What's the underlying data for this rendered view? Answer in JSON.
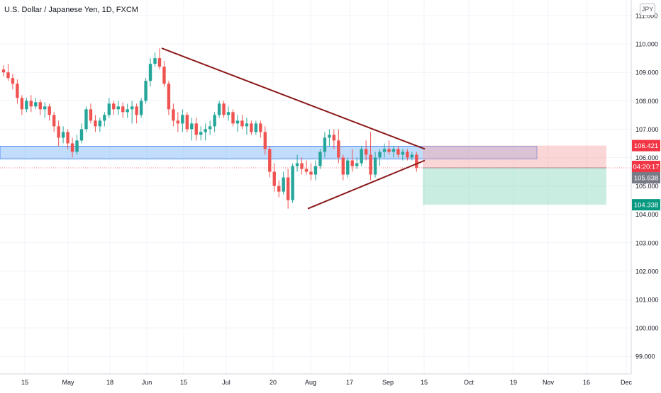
{
  "header": {
    "title": "U.S. Dollar / Japanese Yen, 1D, FXCM",
    "currency": "JPY"
  },
  "chart_data": {
    "type": "candlestick",
    "title": "U.S. Dollar / Japanese Yen, 1D, FXCM",
    "ylim": [
      98.4,
      111.6
    ],
    "y_ticks": [
      "111.000",
      "110.000",
      "109.000",
      "108.000",
      "107.000",
      "106.000",
      "105.000",
      "104.000",
      "103.000",
      "102.000",
      "101.000",
      "100.000",
      "99.000"
    ],
    "x_ticks": [
      "15",
      "May",
      "18",
      "Jun",
      "15",
      "Jul",
      "20",
      "Aug",
      "17",
      "Sep",
      "15",
      "Oct",
      "19",
      "Nov",
      "16",
      "Dec"
    ],
    "price_labels": {
      "stop": "106.421",
      "countdown": "04:20:17",
      "last": "105.638",
      "target": "104.338"
    },
    "colors": {
      "up": "#26a69a",
      "down": "#ef5350",
      "trend": "#8b1a1a",
      "zone": "#90bff9"
    },
    "zone": [
      105.95,
      106.4
    ],
    "position": {
      "entry": 105.638,
      "stop": 106.421,
      "target": 104.338
    },
    "trendlines": [
      {
        "from": [
          0,
          109.85
        ],
        "to": [
          62,
          106.3
        ]
      },
      {
        "from": [
          0,
          104.2
        ],
        "to": [
          62,
          105.9
        ]
      }
    ],
    "candles": [
      [
        109.1,
        109.25,
        108.85,
        109.0
      ],
      [
        109.0,
        109.3,
        108.7,
        108.8
      ],
      [
        108.8,
        108.95,
        108.4,
        108.6
      ],
      [
        108.6,
        108.75,
        107.9,
        108.1
      ],
      [
        108.1,
        108.2,
        107.5,
        107.7
      ],
      [
        107.7,
        108.1,
        107.6,
        108.0
      ],
      [
        108.0,
        108.2,
        107.6,
        107.8
      ],
      [
        107.8,
        108.1,
        107.7,
        107.95
      ],
      [
        107.95,
        108.05,
        107.5,
        107.7
      ],
      [
        107.7,
        107.95,
        107.4,
        107.8
      ],
      [
        107.8,
        107.9,
        107.3,
        107.5
      ],
      [
        107.5,
        107.6,
        106.9,
        107.1
      ],
      [
        107.1,
        107.3,
        106.4,
        106.7
      ],
      [
        106.7,
        107.1,
        106.5,
        106.9
      ],
      [
        106.9,
        107.0,
        106.3,
        106.5
      ],
      [
        106.5,
        106.7,
        106.0,
        106.2
      ],
      [
        106.2,
        106.8,
        106.1,
        106.6
      ],
      [
        106.6,
        107.2,
        106.5,
        107.0
      ],
      [
        107.0,
        107.8,
        106.9,
        107.7
      ],
      [
        107.7,
        107.9,
        107.2,
        107.3
      ],
      [
        107.3,
        107.5,
        106.9,
        107.1
      ],
      [
        107.1,
        107.4,
        106.9,
        107.3
      ],
      [
        107.3,
        107.6,
        107.1,
        107.5
      ],
      [
        107.5,
        108.1,
        107.4,
        107.9
      ],
      [
        107.9,
        108.0,
        107.5,
        107.7
      ],
      [
        107.7,
        108.0,
        107.5,
        107.8
      ],
      [
        107.8,
        107.95,
        107.4,
        107.6
      ],
      [
        107.6,
        107.9,
        107.4,
        107.7
      ],
      [
        107.7,
        108.0,
        107.2,
        107.8
      ],
      [
        107.8,
        107.9,
        107.2,
        107.5
      ],
      [
        107.5,
        108.1,
        107.4,
        108.0
      ],
      [
        108.0,
        108.8,
        107.9,
        108.7
      ],
      [
        108.7,
        109.5,
        108.5,
        109.3
      ],
      [
        109.3,
        109.7,
        109.2,
        109.5
      ],
      [
        109.5,
        109.85,
        109.1,
        109.2
      ],
      [
        109.2,
        109.4,
        108.5,
        108.6
      ],
      [
        108.6,
        108.7,
        107.5,
        107.7
      ],
      [
        107.7,
        107.9,
        107.1,
        107.3
      ],
      [
        107.3,
        107.6,
        106.9,
        107.2
      ],
      [
        107.2,
        107.7,
        106.9,
        107.5
      ],
      [
        107.5,
        107.6,
        106.9,
        107.0
      ],
      [
        107.0,
        107.4,
        106.6,
        107.2
      ],
      [
        107.2,
        107.4,
        106.6,
        106.8
      ],
      [
        106.8,
        107.1,
        106.6,
        106.9
      ],
      [
        106.9,
        107.2,
        106.6,
        107.0
      ],
      [
        107.0,
        107.3,
        106.8,
        107.1
      ],
      [
        107.1,
        107.6,
        106.9,
        107.5
      ],
      [
        107.5,
        108.0,
        107.4,
        107.9
      ],
      [
        107.9,
        108.0,
        107.4,
        107.5
      ],
      [
        107.5,
        107.8,
        107.3,
        107.6
      ],
      [
        107.6,
        107.7,
        107.1,
        107.2
      ],
      [
        107.2,
        107.5,
        106.9,
        107.3
      ],
      [
        107.3,
        107.5,
        107.0,
        107.1
      ],
      [
        107.1,
        107.4,
        106.8,
        107.2
      ],
      [
        107.2,
        107.3,
        106.8,
        106.9
      ],
      [
        106.9,
        107.3,
        106.8,
        107.2
      ],
      [
        107.2,
        107.3,
        106.7,
        106.9
      ],
      [
        106.9,
        107.1,
        106.1,
        106.3
      ],
      [
        106.3,
        106.4,
        105.3,
        105.5
      ],
      [
        105.5,
        105.8,
        104.8,
        105.0
      ],
      [
        105.0,
        105.2,
        104.6,
        104.8
      ],
      [
        104.8,
        105.5,
        104.7,
        105.3
      ],
      [
        105.3,
        105.6,
        104.2,
        104.5
      ],
      [
        104.5,
        105.8,
        104.4,
        105.7
      ],
      [
        105.7,
        106.1,
        105.5,
        105.8
      ],
      [
        105.8,
        106.0,
        105.4,
        105.6
      ],
      [
        105.6,
        105.9,
        105.4,
        105.5
      ],
      [
        105.5,
        105.8,
        105.2,
        105.4
      ],
      [
        105.4,
        105.9,
        105.2,
        105.7
      ],
      [
        105.7,
        106.3,
        105.6,
        106.2
      ],
      [
        106.2,
        106.9,
        106.0,
        106.7
      ],
      [
        106.7,
        107.0,
        106.4,
        106.8
      ],
      [
        106.8,
        107.0,
        106.3,
        106.6
      ],
      [
        106.6,
        107.0,
        105.8,
        106.0
      ],
      [
        106.0,
        106.1,
        105.2,
        105.4
      ],
      [
        105.4,
        106.0,
        105.3,
        105.9
      ],
      [
        105.9,
        106.3,
        105.5,
        105.7
      ],
      [
        105.7,
        106.0,
        105.6,
        105.8
      ],
      [
        105.8,
        106.4,
        105.7,
        106.3
      ],
      [
        106.3,
        106.6,
        105.9,
        106.1
      ],
      [
        106.1,
        106.9,
        105.2,
        105.4
      ],
      [
        105.4,
        106.2,
        105.3,
        106.0
      ],
      [
        106.0,
        106.3,
        105.7,
        106.2
      ],
      [
        106.2,
        106.5,
        106.0,
        106.3
      ],
      [
        106.3,
        106.6,
        106.1,
        106.2
      ],
      [
        106.2,
        106.4,
        106.0,
        106.3
      ],
      [
        106.3,
        106.4,
        106.0,
        106.1
      ],
      [
        106.1,
        106.3,
        105.9,
        106.2
      ],
      [
        106.2,
        106.3,
        105.9,
        106.0
      ],
      [
        106.0,
        106.2,
        105.9,
        106.1
      ],
      [
        106.1,
        106.2,
        105.5,
        105.64
      ]
    ]
  }
}
